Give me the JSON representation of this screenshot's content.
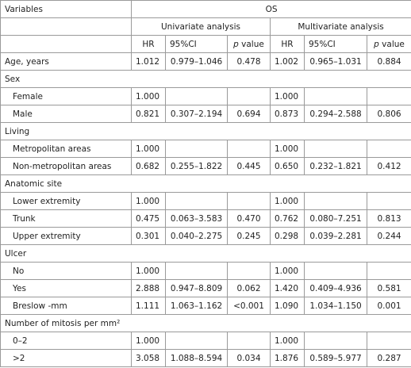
{
  "table": {
    "header": {
      "variables": "Variables",
      "os": "OS",
      "univariate": "Univariate analysis",
      "multivariate": "Multivariate analysis",
      "columns": [
        "HR",
        "95%CI",
        "p value",
        "HR",
        "95%CI",
        "p value"
      ]
    },
    "rows": [
      {
        "cells": [
          "Age, years",
          "1.012",
          "0.979–1.046",
          "0.478",
          "1.002",
          "0.965–1.031",
          "0.884"
        ]
      }
    ],
    "groups": [
      {
        "label": "Sex",
        "rows": [
          [
            "Female",
            "1.000",
            null,
            null,
            "1.000",
            null,
            null
          ],
          [
            "Male",
            "0.821",
            "0.307–2.194",
            "0.694",
            "0.873",
            "0.294–2.588",
            "0.806"
          ]
        ]
      },
      {
        "label": "Living",
        "rows": [
          [
            "Metropolitan areas",
            "1.000",
            null,
            null,
            "1.000",
            null,
            null
          ],
          [
            "Non-metropolitan areas",
            "0.682",
            "0.255–1.822",
            "0.445",
            "0.650",
            "0.232–1.821",
            "0.412"
          ]
        ]
      },
      {
        "label": "Anatomic site",
        "rows": [
          [
            "Lower extremity",
            "1.000",
            null,
            null,
            "1.000",
            null,
            null
          ],
          [
            "Trunk",
            "0.475",
            "0.063–3.583",
            "0.470",
            "0.762",
            "0.080–7.251",
            "0.813"
          ],
          [
            "Upper extremity",
            "0.301",
            "0.040–2.275",
            "0.245",
            "0.298",
            "0.039–2.281",
            "0.244"
          ]
        ]
      },
      {
        "label": "Ulcer",
        "rows": [
          [
            "No",
            "1.000",
            null,
            null,
            "1.000",
            null,
            null
          ],
          [
            "Yes",
            "2.888",
            "0.947–8.809",
            "0.062",
            "1.420",
            "0.409–4.936",
            "0.581"
          ],
          [
            "Breslow -mm",
            "1.111",
            "1.063–1.162",
            "<0.001",
            "1.090",
            "1.034–1.150",
            "0.001"
          ]
        ]
      },
      {
        "label": "Number of mitosis per mm²",
        "rows": [
          [
            "0–2",
            "1.000",
            null,
            null,
            "1.000",
            null,
            null
          ],
          [
            ">2",
            "3.058",
            "1.088–8.594",
            "0.034",
            "1.876",
            "0.589–5.977",
            "0.287"
          ]
        ]
      }
    ]
  }
}
